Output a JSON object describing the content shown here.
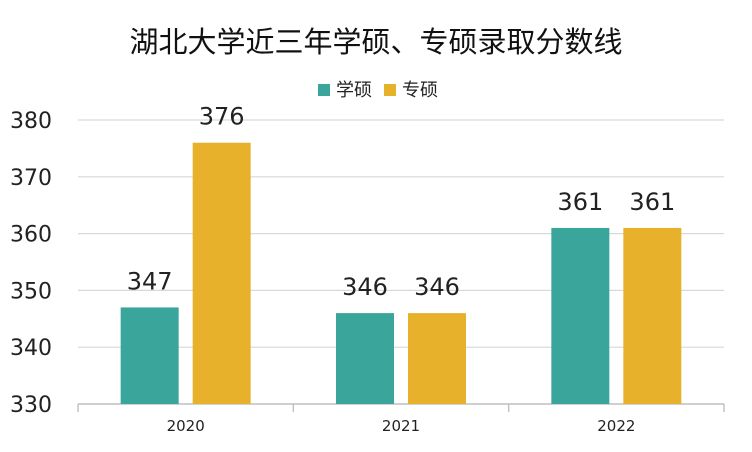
{
  "chart_data": {
    "type": "bar",
    "title": "湖北大学近三年学硕、专硕录取分数线",
    "categories": [
      "2020",
      "2021",
      "2022"
    ],
    "series": [
      {
        "name": "学硕",
        "values": [
          347,
          346,
          361
        ],
        "color": "#3aa59a"
      },
      {
        "name": "专硕",
        "values": [
          376,
          346,
          361
        ],
        "color": "#e8b12b"
      }
    ],
    "yticks": [
      330,
      340,
      350,
      360,
      370,
      380
    ],
    "ylim": [
      330,
      380
    ],
    "grid": true,
    "legend_position": "top-center",
    "xlabel": "",
    "ylabel": ""
  }
}
